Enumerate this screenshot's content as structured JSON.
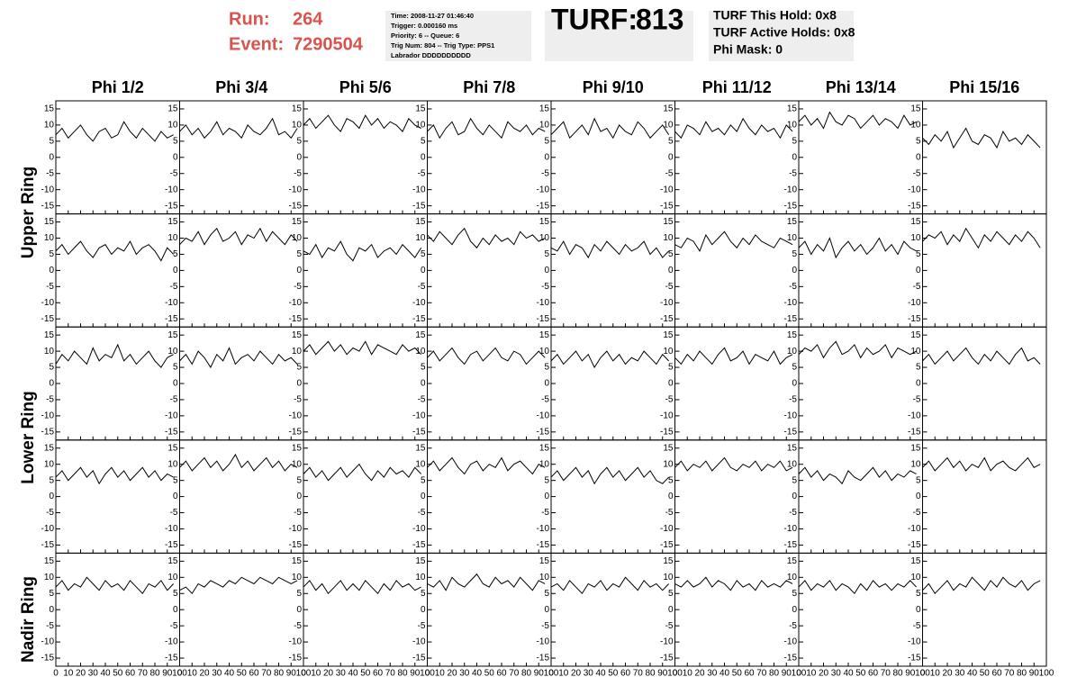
{
  "chart_data": {
    "type": "line",
    "header": {
      "run_label": "Run:",
      "run": "264",
      "event_label": "Event:",
      "event": "7290504",
      "info": [
        "Time: 2008-11-27 01:46:40",
        "Trigger: 0.000160 ms",
        "Priority: 6 -- Queue: 6",
        "Trig Num: 804 -- Trig Type: PPS1",
        "Labrador DDDDDDDDDD"
      ],
      "turf_label": "TURF:",
      "turf": "813",
      "turf_info": [
        "TURF This Hold: 0x8",
        "TURF Active Holds: 0x8",
        "Phi Mask: 0"
      ]
    },
    "column_titles": [
      "Phi 1/2",
      "Phi 3/4",
      "Phi 5/6",
      "Phi 7/8",
      "Phi 9/10",
      "Phi 11/12",
      "Phi 13/14",
      "Phi 15/16"
    ],
    "row_titles": [
      "Upper Ring",
      "Lower Ring",
      "Nadir Ring"
    ],
    "color": "#000000",
    "xlim": [
      0,
      100
    ],
    "xticks": [
      0,
      10,
      20,
      30,
      40,
      50,
      60,
      70,
      80,
      90,
      100
    ],
    "ylim": [
      -17.5,
      17.5
    ],
    "yticks": [
      -15,
      -10,
      -5,
      0,
      5,
      10,
      15
    ],
    "x": [
      0,
      5,
      10,
      15,
      20,
      25,
      30,
      35,
      40,
      45,
      50,
      55,
      60,
      65,
      70,
      75,
      80,
      85,
      90,
      95
    ],
    "panels": [
      [
        [
          7,
          9,
          6,
          8,
          10,
          7,
          5,
          8,
          9,
          6,
          7,
          11,
          8,
          6,
          9,
          7,
          5,
          8,
          6,
          7
        ],
        [
          8,
          10,
          7,
          9,
          6,
          8,
          11,
          7,
          9,
          8,
          6,
          10,
          8,
          7,
          9,
          12,
          7,
          8,
          6,
          9
        ],
        [
          10,
          12,
          9,
          11,
          13,
          10,
          8,
          12,
          11,
          9,
          13,
          10,
          12,
          9,
          11,
          10,
          8,
          12,
          10,
          9
        ],
        [
          8,
          10,
          6,
          9,
          11,
          7,
          8,
          12,
          9,
          7,
          10,
          8,
          6,
          11,
          9,
          8,
          10,
          7,
          9,
          8
        ],
        [
          7,
          9,
          11,
          6,
          8,
          10,
          7,
          12,
          8,
          9,
          6,
          10,
          8,
          7,
          11,
          9,
          6,
          8,
          10,
          7
        ],
        [
          8,
          6,
          10,
          9,
          7,
          11,
          8,
          9,
          7,
          10,
          8,
          12,
          9,
          7,
          10,
          8,
          9,
          6,
          10,
          8
        ],
        [
          11,
          13,
          10,
          12,
          9,
          14,
          11,
          10,
          13,
          12,
          9,
          11,
          13,
          10,
          12,
          11,
          9,
          13,
          10,
          11
        ],
        [
          6,
          4,
          7,
          5,
          8,
          3,
          6,
          9,
          5,
          4,
          7,
          6,
          3,
          8,
          5,
          6,
          4,
          7,
          5,
          3
        ]
      ],
      [
        [
          6,
          8,
          5,
          7,
          9,
          6,
          4,
          7,
          8,
          5,
          7,
          6,
          9,
          5,
          7,
          8,
          6,
          3,
          7,
          5
        ],
        [
          8,
          10,
          9,
          12,
          8,
          11,
          13,
          9,
          10,
          12,
          8,
          11,
          10,
          13,
          9,
          12,
          10,
          8,
          11,
          9
        ],
        [
          6,
          5,
          8,
          4,
          7,
          6,
          9,
          5,
          3,
          7,
          6,
          8,
          4,
          6,
          7,
          5,
          8,
          6,
          4,
          7
        ],
        [
          11,
          9,
          12,
          10,
          8,
          11,
          13,
          9,
          7,
          10,
          8,
          11,
          9,
          10,
          8,
          12,
          10,
          11,
          9,
          10
        ],
        [
          7,
          6,
          9,
          5,
          8,
          7,
          4,
          8,
          6,
          9,
          7,
          5,
          8,
          6,
          7,
          9,
          5,
          7,
          4,
          6
        ],
        [
          8,
          7,
          10,
          9,
          6,
          11,
          8,
          10,
          12,
          9,
          7,
          10,
          8,
          11,
          9,
          8,
          7,
          10,
          9,
          8
        ],
        [
          7,
          9,
          5,
          8,
          6,
          10,
          4,
          7,
          9,
          6,
          8,
          5,
          7,
          10,
          6,
          8,
          5,
          9,
          7,
          6
        ],
        [
          9,
          11,
          10,
          12,
          8,
          11,
          9,
          13,
          10,
          7,
          11,
          9,
          12,
          10,
          8,
          11,
          9,
          12,
          10,
          7
        ]
      ],
      [
        [
          6,
          9,
          7,
          10,
          8,
          6,
          11,
          7,
          9,
          8,
          12,
          7,
          9,
          6,
          8,
          10,
          7,
          5,
          8,
          9
        ],
        [
          7,
          9,
          6,
          10,
          8,
          5,
          9,
          7,
          11,
          6,
          8,
          9,
          7,
          10,
          8,
          6,
          9,
          7,
          8,
          6
        ],
        [
          10,
          12,
          9,
          11,
          13,
          10,
          12,
          9,
          11,
          10,
          13,
          9,
          12,
          11,
          10,
          9,
          12,
          10,
          11,
          9
        ],
        [
          8,
          10,
          7,
          9,
          11,
          8,
          6,
          9,
          10,
          7,
          9,
          11,
          8,
          7,
          10,
          9,
          6,
          8,
          10,
          8
        ],
        [
          7,
          9,
          6,
          8,
          10,
          7,
          9,
          5,
          8,
          10,
          7,
          9,
          6,
          8,
          7,
          10,
          8,
          6,
          9,
          7
        ],
        [
          8,
          6,
          9,
          7,
          10,
          8,
          6,
          9,
          11,
          7,
          8,
          10,
          6,
          9,
          8,
          7,
          10,
          6,
          8,
          9
        ],
        [
          9,
          11,
          10,
          12,
          8,
          11,
          13,
          9,
          10,
          12,
          8,
          11,
          9,
          10,
          12,
          8,
          11,
          10,
          9,
          10
        ],
        [
          7,
          9,
          6,
          8,
          10,
          7,
          9,
          11,
          8,
          6,
          9,
          7,
          10,
          8,
          6,
          9,
          11,
          7,
          8,
          6
        ]
      ],
      [
        [
          6,
          8,
          5,
          7,
          9,
          6,
          8,
          4,
          7,
          9,
          6,
          8,
          5,
          7,
          9,
          6,
          8,
          5,
          7,
          6
        ],
        [
          9,
          11,
          8,
          10,
          12,
          9,
          11,
          8,
          10,
          13,
          9,
          11,
          8,
          10,
          12,
          9,
          11,
          8,
          10,
          9
        ],
        [
          7,
          9,
          6,
          8,
          5,
          7,
          9,
          6,
          8,
          10,
          7,
          5,
          8,
          6,
          9,
          7,
          8,
          6,
          9,
          7
        ],
        [
          9,
          11,
          8,
          10,
          12,
          9,
          7,
          10,
          11,
          8,
          10,
          9,
          12,
          8,
          10,
          11,
          9,
          7,
          10,
          9
        ],
        [
          6,
          8,
          5,
          7,
          9,
          6,
          8,
          4,
          7,
          9,
          6,
          8,
          5,
          7,
          9,
          6,
          8,
          5,
          4,
          6
        ],
        [
          9,
          11,
          8,
          10,
          9,
          11,
          8,
          10,
          12,
          9,
          8,
          10,
          9,
          11,
          8,
          10,
          9,
          11,
          8,
          9
        ],
        [
          7,
          9,
          6,
          8,
          5,
          7,
          6,
          4,
          8,
          6,
          5,
          7,
          9,
          6,
          8,
          5,
          7,
          6,
          8,
          7
        ],
        [
          9,
          11,
          8,
          10,
          12,
          9,
          11,
          8,
          10,
          9,
          12,
          8,
          10,
          11,
          9,
          8,
          10,
          12,
          9,
          10
        ]
      ],
      [
        [
          7,
          9,
          6,
          8,
          7,
          10,
          8,
          6,
          9,
          7,
          8,
          6,
          9,
          7,
          5,
          8,
          7,
          9,
          6,
          8
        ],
        [
          6,
          7,
          5,
          8,
          7,
          9,
          8,
          7,
          9,
          8,
          10,
          9,
          8,
          10,
          9,
          8,
          10,
          9,
          8,
          9
        ],
        [
          7,
          9,
          6,
          8,
          5,
          7,
          9,
          6,
          8,
          6,
          9,
          7,
          5,
          8,
          6,
          9,
          7,
          8,
          6,
          7
        ],
        [
          8,
          7,
          9,
          6,
          10,
          8,
          7,
          9,
          11,
          8,
          7,
          10,
          8,
          9,
          7,
          10,
          8,
          6,
          9,
          8
        ],
        [
          7,
          8,
          6,
          9,
          7,
          5,
          8,
          7,
          9,
          6,
          8,
          7,
          10,
          8,
          6,
          9,
          7,
          8,
          6,
          8
        ],
        [
          8,
          7,
          9,
          7,
          8,
          10,
          7,
          9,
          8,
          6,
          9,
          7,
          8,
          6,
          9,
          7,
          8,
          7,
          9,
          8
        ],
        [
          7,
          9,
          6,
          8,
          7,
          9,
          6,
          8,
          7,
          5,
          8,
          6,
          9,
          7,
          8,
          6,
          8,
          7,
          9,
          7
        ],
        [
          6,
          8,
          5,
          7,
          9,
          6,
          8,
          7,
          10,
          8,
          6,
          9,
          7,
          10,
          8,
          7,
          9,
          6,
          8,
          9
        ]
      ]
    ]
  }
}
